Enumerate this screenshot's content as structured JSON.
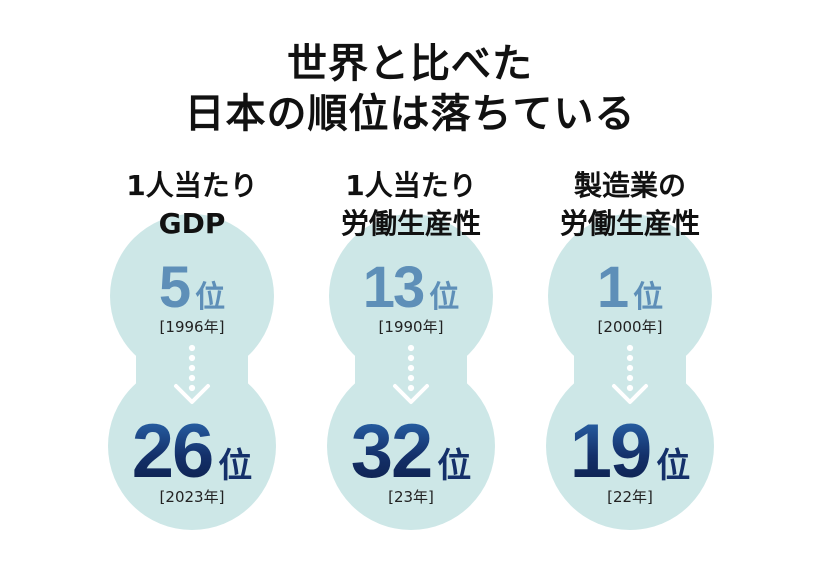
{
  "title": {
    "line1": "世界と比べた",
    "line2": "日本の順位は落ちている"
  },
  "columns": [
    {
      "label1": "1人当たり",
      "label2": "GDP",
      "before_rank": "5",
      "before_year": "[1996年]",
      "after_rank": "26",
      "after_year": "[2023年]",
      "unit": "位"
    },
    {
      "label1": "1人当たり",
      "label2": "労働生産性",
      "before_rank": "13",
      "before_year": "[1990年]",
      "after_rank": "32",
      "after_year": "[23年]",
      "unit": "位"
    },
    {
      "label1": "製造業の",
      "label2": "労働生産性",
      "before_rank": "1",
      "before_year": "[2000年]",
      "after_rank": "19",
      "after_year": "[22年]",
      "unit": "位"
    }
  ],
  "colors": {
    "blob": "#cde7e7",
    "arrow": "#ffffff",
    "before_text": "#5e8fb8",
    "after_text": "#14306a"
  },
  "icons": [
    "dotted-down-arrow-icon"
  ]
}
